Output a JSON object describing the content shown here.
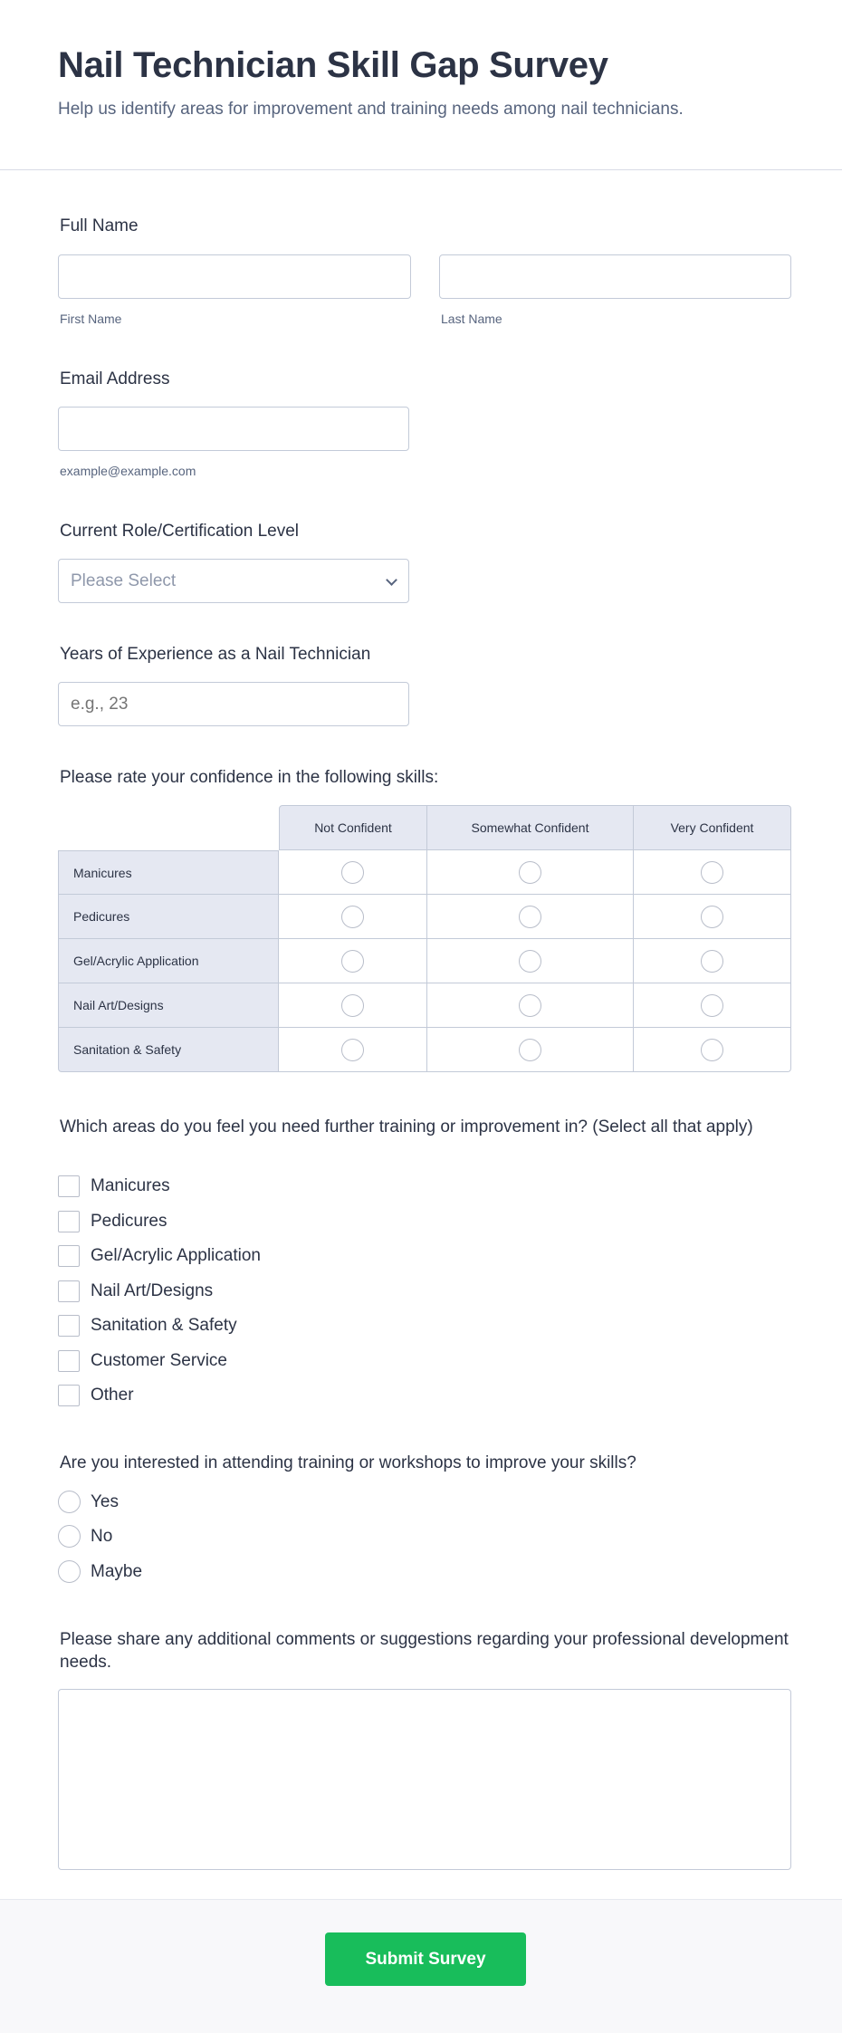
{
  "header": {
    "title": "Nail Technician Skill Gap Survey",
    "subtitle": "Help us identify areas for improvement and training needs among nail technicians."
  },
  "full_name": {
    "label": "Full Name",
    "first_label": "First Name",
    "last_label": "Last Name",
    "first_value": "",
    "last_value": ""
  },
  "email": {
    "label": "Email Address",
    "hint": "example@example.com",
    "value": ""
  },
  "role": {
    "label": "Current Role/Certification Level",
    "selected": "Please Select"
  },
  "years": {
    "label": "Years of Experience as a Nail Technician",
    "placeholder": "e.g., 23"
  },
  "matrix": {
    "label": "Please rate your confidence in the following skills:",
    "columns": [
      "Not Confident",
      "Somewhat Confident",
      "Very Confident"
    ],
    "rows": [
      "Manicures",
      "Pedicures",
      "Gel/Acrylic Application",
      "Nail Art/Designs",
      "Sanitation & Safety"
    ]
  },
  "training_areas": {
    "label": "Which areas do you feel you need further training or improvement in? (Select all that apply)",
    "options": [
      "Manicures",
      "Pedicures",
      "Gel/Acrylic Application",
      "Nail Art/Designs",
      "Sanitation & Safety",
      "Customer Service",
      "Other"
    ]
  },
  "workshops": {
    "label": "Are you interested in attending training or workshops to improve your skills?",
    "options": [
      "Yes",
      "No",
      "Maybe"
    ]
  },
  "comments": {
    "label": "Please share any additional comments or suggestions regarding your professional development needs.",
    "value": ""
  },
  "submit": {
    "label": "Submit Survey",
    "color": "#18bd5b"
  }
}
